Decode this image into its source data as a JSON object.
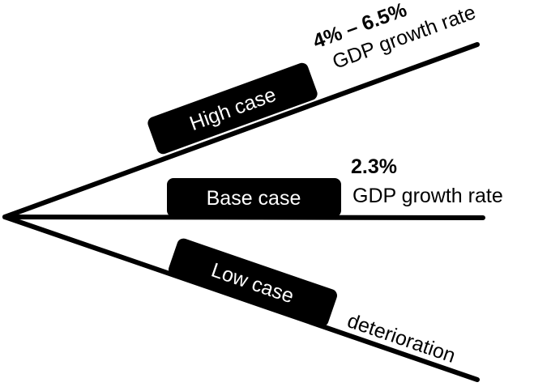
{
  "colors": {
    "line": "#000000",
    "pill_fill": "#000000",
    "pill_text": "#ffffff",
    "text": "#000000",
    "background": "#ffffff"
  },
  "scenarios": {
    "high": {
      "label": "High case",
      "value": "4% – 6.5%",
      "subtitle": "GDP growth rate"
    },
    "base": {
      "label": "Base case",
      "value": "2.3%",
      "subtitle": "GDP growth rate"
    },
    "low": {
      "label": "Low case",
      "subtitle": "deterioration"
    }
  }
}
